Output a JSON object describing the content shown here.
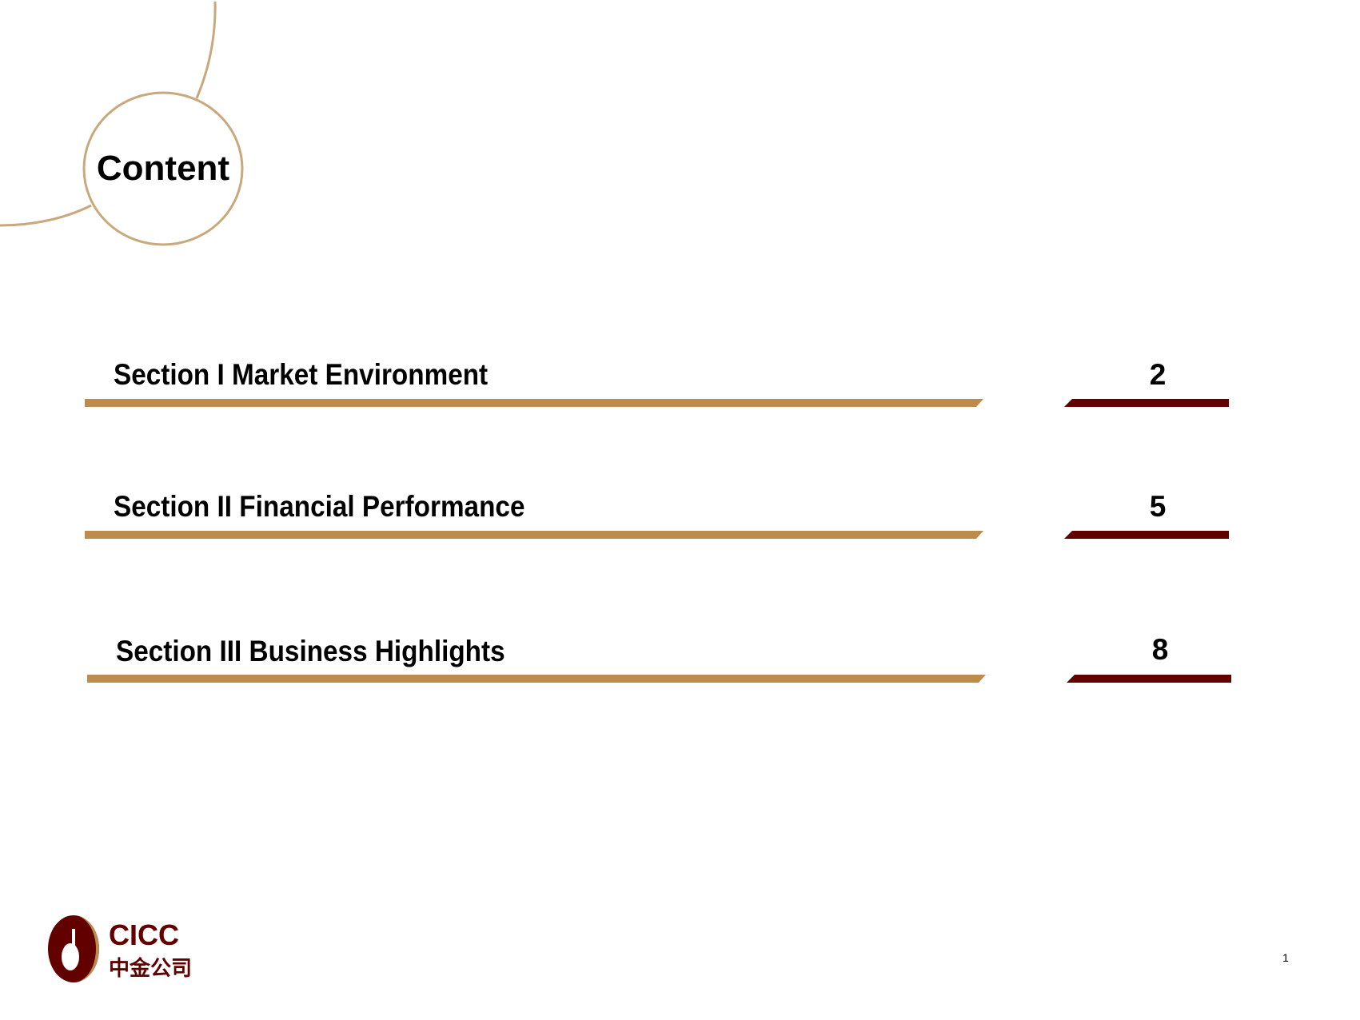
{
  "title": "Content",
  "sections": [
    {
      "label": "Section I Market Environment",
      "page": "2"
    },
    {
      "label": "Section II Financial Performance",
      "page": "5"
    },
    {
      "label": "Section III Business Highlights",
      "page": "8"
    }
  ],
  "footer": {
    "logo_text_en": "CICC",
    "logo_text_cn": "中金公司",
    "page_number": "1"
  },
  "colors": {
    "gold": "#BD8C4C",
    "circle_gold": "#C9A97C",
    "maroon": "#620000"
  }
}
